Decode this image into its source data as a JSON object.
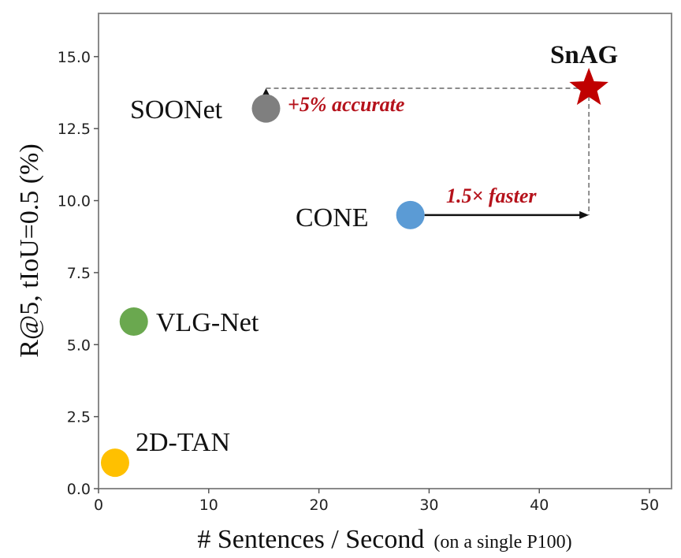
{
  "chart_data": {
    "type": "scatter",
    "xlabel": "# Sentences / Second",
    "xlabel_note": "(on a single P100)",
    "ylabel": "R@5, tIoU=0.5  (%)",
    "xlim": [
      0,
      52
    ],
    "ylim": [
      0,
      16.5
    ],
    "xticks": [
      "0",
      "10",
      "20",
      "30",
      "40",
      "50"
    ],
    "yticks": [
      "0.0",
      "2.5",
      "5.0",
      "7.5",
      "10.0",
      "12.5",
      "15.0"
    ],
    "grid": false,
    "points": [
      {
        "name": "2D-TAN",
        "x": 1.5,
        "y": 0.9,
        "color": "#ffc000",
        "marker": "circle"
      },
      {
        "name": "VLG-Net",
        "x": 3.2,
        "y": 5.8,
        "color": "#6aa84f",
        "marker": "circle"
      },
      {
        "name": "CONE",
        "x": 28.3,
        "y": 9.5,
        "color": "#5b9bd5",
        "marker": "circle"
      },
      {
        "name": "SOONet",
        "x": 15.2,
        "y": 13.2,
        "color": "#7f7f7f",
        "marker": "circle"
      },
      {
        "name": "SnAG",
        "x": 44.5,
        "y": 13.9,
        "color": "#c00000",
        "marker": "star"
      }
    ],
    "annotations": [
      {
        "text": "+5% accurate",
        "color": "#b5121b"
      },
      {
        "text": "1.5× faster",
        "color": "#b5121b"
      }
    ]
  }
}
